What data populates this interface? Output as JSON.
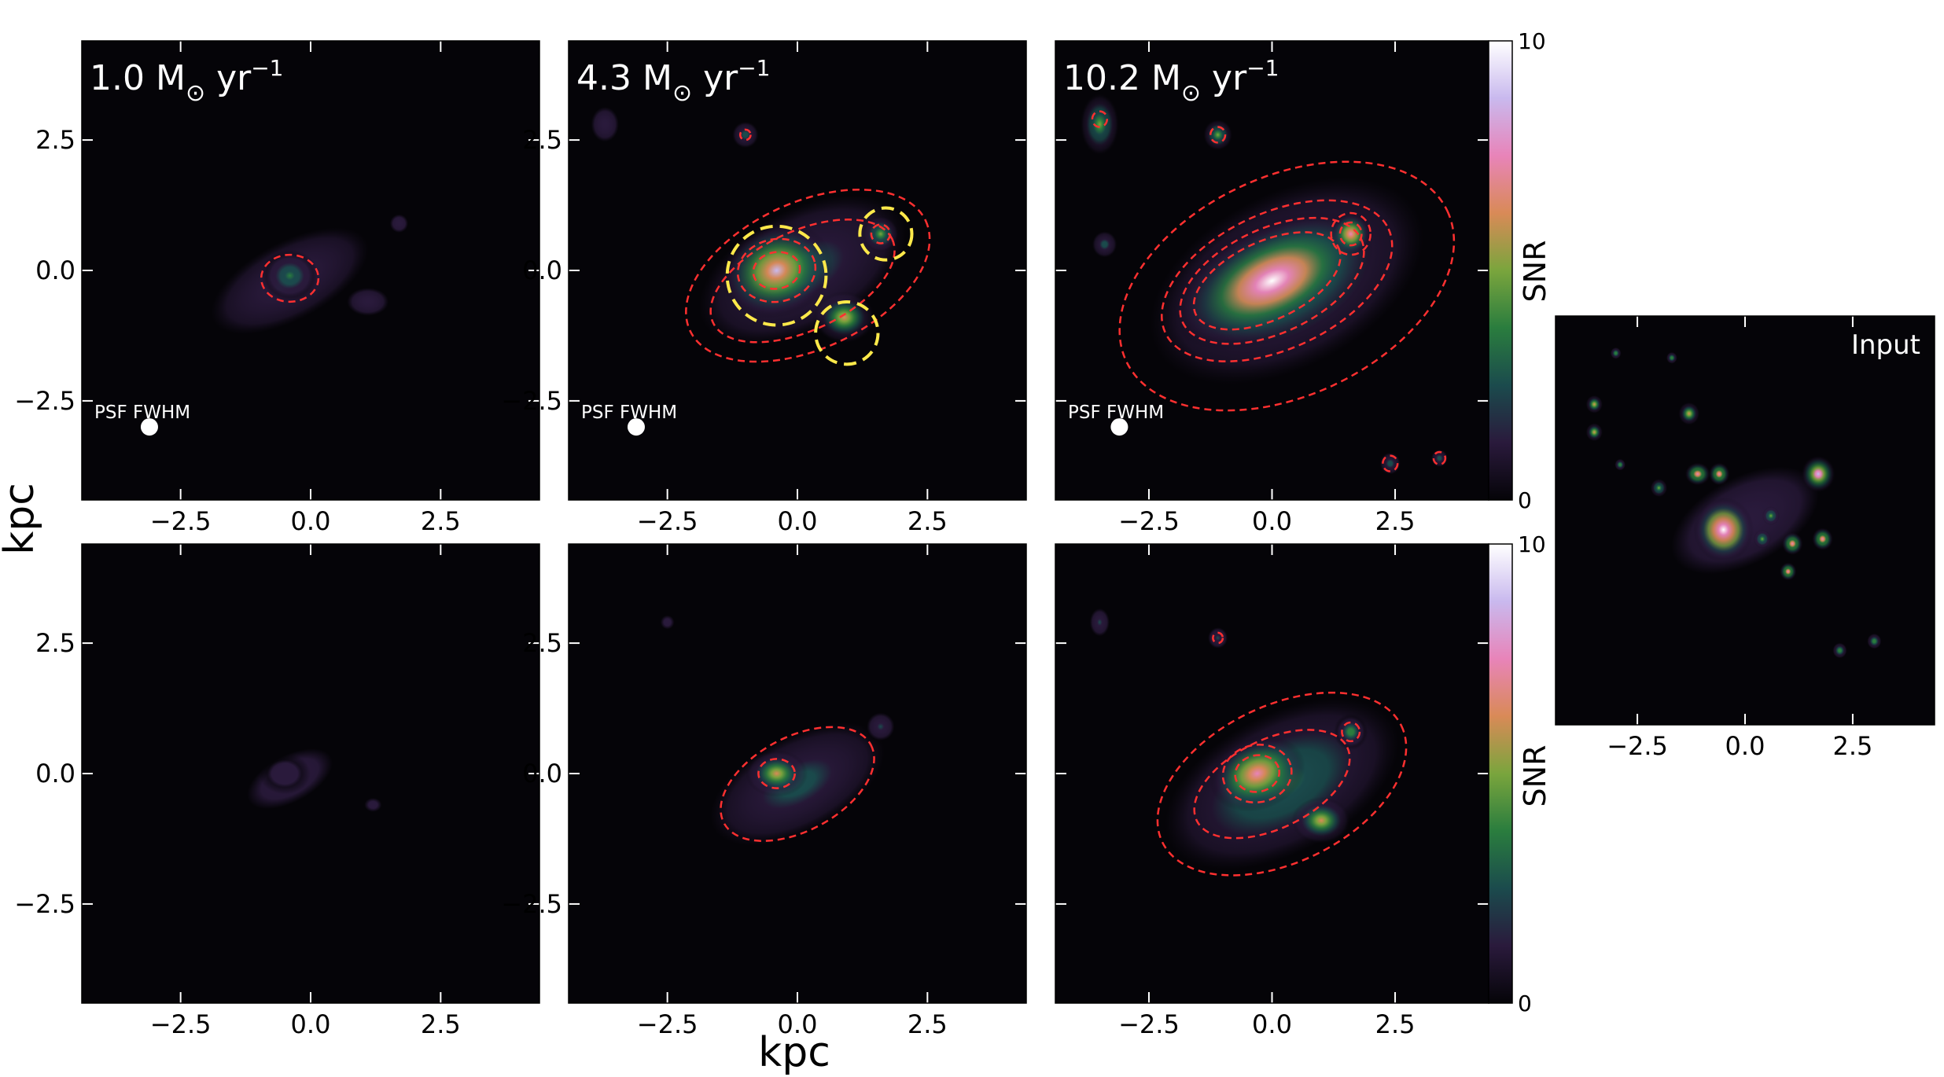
{
  "figure": {
    "xlabel": "kpc",
    "ylabel": "kpc",
    "colorbar_title": "SNR",
    "colorbar_range": [
      0,
      10
    ],
    "colorbar_tick_labels": [
      "10",
      "0"
    ],
    "psf_label": "PSF FWHM",
    "input_label": "Input",
    "tick_labels": [
      "−2.5",
      "0.0",
      "2.5"
    ],
    "row_titles": [
      "1.0",
      "4.3",
      "10.2"
    ],
    "unit_main": "M",
    "unit_sub": "⊙",
    "unit_yr": " yr",
    "unit_exp": "−1",
    "colors": {
      "background": "#050408",
      "contour": "#ff3030",
      "highlight": "#ffe94a",
      "cmap": [
        "#050408",
        "#2a1a3c",
        "#1b4b4d",
        "#2a7d3e",
        "#7aa53d",
        "#d98a57",
        "#e884b9",
        "#c9b9ee",
        "#ffffff"
      ]
    }
  },
  "chart_data": [
    {
      "type": "heatmap",
      "panel": "top-left",
      "sfr_label": "1.0 M⊙ yr⁻¹",
      "xlim": [
        -4.4,
        4.4
      ],
      "ylim": [
        -4.4,
        4.4
      ],
      "xticks": [
        -2.5,
        0.0,
        2.5
      ],
      "yticks": [
        -2.5,
        0.0,
        2.5
      ],
      "blobs": [
        {
          "x": -0.4,
          "y": -0.2,
          "sx": 2.0,
          "sy": 0.9,
          "rot": -28,
          "snr": 2.2
        },
        {
          "x": -0.4,
          "y": -0.1,
          "sx": 0.55,
          "sy": 0.5,
          "rot": 0,
          "snr": 3.6
        },
        {
          "x": 1.1,
          "y": -0.6,
          "sx": 0.6,
          "sy": 0.4,
          "rot": 0,
          "snr": 1.6
        },
        {
          "x": 1.7,
          "y": 0.9,
          "sx": 0.35,
          "sy": 0.35,
          "rot": 0,
          "snr": 1.2
        }
      ],
      "contours": [
        {
          "x": -0.4,
          "y": -0.15,
          "rx": 0.55,
          "ry": 0.45,
          "rot": 0
        }
      ],
      "highlight_circles": [],
      "psf": {
        "x": -3.1,
        "y": -3.0
      }
    },
    {
      "type": "heatmap",
      "panel": "top-middle",
      "sfr_label": "4.3 M⊙ yr⁻¹",
      "xlim": [
        -4.4,
        4.4
      ],
      "ylim": [
        -4.4,
        4.4
      ],
      "xticks": [
        -2.5,
        0.0,
        2.5
      ],
      "yticks": [
        -2.5,
        0.0,
        2.5
      ],
      "blobs": [
        {
          "x": 0.1,
          "y": 0.0,
          "sx": 2.6,
          "sy": 1.4,
          "rot": -28,
          "snr": 3.0
        },
        {
          "x": -0.4,
          "y": 0.0,
          "sx": 1.1,
          "sy": 0.9,
          "rot": -20,
          "snr": 8.5
        },
        {
          "x": 0.9,
          "y": -0.9,
          "sx": 0.6,
          "sy": 0.5,
          "rot": 0,
          "snr": 6.0
        },
        {
          "x": 1.6,
          "y": 0.7,
          "sx": 0.35,
          "sy": 0.35,
          "rot": 0,
          "snr": 5.0
        },
        {
          "x": -3.7,
          "y": 2.8,
          "sx": 0.4,
          "sy": 0.5,
          "rot": 0,
          "snr": 1.5
        },
        {
          "x": -1.0,
          "y": 2.6,
          "sx": 0.3,
          "sy": 0.3,
          "rot": 0,
          "snr": 2.5
        }
      ],
      "contours": [
        {
          "x": 0.2,
          "y": -0.1,
          "rx": 2.5,
          "ry": 1.4,
          "rot": -25
        },
        {
          "x": 0.1,
          "y": -0.2,
          "rx": 1.9,
          "ry": 0.95,
          "rot": -25
        },
        {
          "x": -0.4,
          "y": 0.0,
          "rx": 0.75,
          "ry": 0.6,
          "rot": -10
        },
        {
          "x": -0.4,
          "y": 0.0,
          "rx": 0.45,
          "ry": 0.35,
          "rot": -10
        },
        {
          "x": 1.6,
          "y": 0.7,
          "rx": 0.18,
          "ry": 0.18,
          "rot": 0
        },
        {
          "x": -1.0,
          "y": 2.6,
          "rx": 0.1,
          "ry": 0.1,
          "rot": 0
        }
      ],
      "highlight_circles": [
        {
          "x": -0.4,
          "y": -0.1,
          "r": 0.95
        },
        {
          "x": 0.95,
          "y": -1.2,
          "r": 0.6
        },
        {
          "x": 1.7,
          "y": 0.7,
          "r": 0.5
        }
      ],
      "psf": {
        "x": -3.1,
        "y": -3.0
      }
    },
    {
      "type": "heatmap",
      "panel": "top-right",
      "sfr_label": "10.2 M⊙ yr⁻¹",
      "xlim": [
        -4.4,
        4.4
      ],
      "ylim": [
        -4.4,
        4.4
      ],
      "xticks": [
        -2.5,
        0.0,
        2.5
      ],
      "yticks": [
        -2.5,
        0.0,
        2.5
      ],
      "blobs": [
        {
          "x": 0.3,
          "y": -0.2,
          "sx": 3.6,
          "sy": 2.0,
          "rot": -28,
          "snr": 3.6
        },
        {
          "x": 0.0,
          "y": -0.2,
          "sx": 2.2,
          "sy": 1.1,
          "rot": -25,
          "snr": 9.5
        },
        {
          "x": 1.6,
          "y": 0.7,
          "sx": 0.4,
          "sy": 0.4,
          "rot": 0,
          "snr": 8.0
        },
        {
          "x": -3.5,
          "y": 2.8,
          "sx": 0.4,
          "sy": 0.6,
          "rot": 0,
          "snr": 5.0
        },
        {
          "x": -1.1,
          "y": 2.6,
          "sx": 0.3,
          "sy": 0.3,
          "rot": 0,
          "snr": 5.0
        },
        {
          "x": -3.4,
          "y": 0.5,
          "sx": 0.3,
          "sy": 0.3,
          "rot": 0,
          "snr": 3.0
        },
        {
          "x": 2.4,
          "y": -3.7,
          "sx": 0.25,
          "sy": 0.25,
          "rot": 0,
          "snr": 3.0
        },
        {
          "x": 3.4,
          "y": -3.6,
          "sx": 0.2,
          "sy": 0.2,
          "rot": 0,
          "snr": 2.5
        }
      ],
      "contours": [
        {
          "x": 0.3,
          "y": -0.3,
          "rx": 3.6,
          "ry": 2.1,
          "rot": -25
        },
        {
          "x": 0.1,
          "y": -0.2,
          "rx": 2.5,
          "ry": 1.3,
          "rot": -25
        },
        {
          "x": 0.0,
          "y": -0.2,
          "rx": 2.0,
          "ry": 1.0,
          "rot": -25
        },
        {
          "x": -0.1,
          "y": -0.2,
          "rx": 1.6,
          "ry": 0.75,
          "rot": -25
        },
        {
          "x": 1.6,
          "y": 0.7,
          "rx": 0.4,
          "ry": 0.4,
          "rot": 0
        },
        {
          "x": 1.6,
          "y": 0.7,
          "rx": 0.22,
          "ry": 0.22,
          "rot": 0
        },
        {
          "x": -3.5,
          "y": 2.9,
          "rx": 0.15,
          "ry": 0.15,
          "rot": 0
        },
        {
          "x": -1.1,
          "y": 2.6,
          "rx": 0.15,
          "ry": 0.15,
          "rot": 0
        },
        {
          "x": 2.4,
          "y": -3.7,
          "rx": 0.15,
          "ry": 0.15,
          "rot": 0
        },
        {
          "x": 3.4,
          "y": -3.6,
          "rx": 0.12,
          "ry": 0.12,
          "rot": 0
        }
      ],
      "highlight_circles": [],
      "psf": {
        "x": -3.1,
        "y": -3.0
      }
    },
    {
      "type": "heatmap",
      "panel": "bottom-left",
      "xlim": [
        -4.4,
        4.4
      ],
      "ylim": [
        -4.4,
        4.4
      ],
      "xticks": [
        -2.5,
        0.0,
        2.5
      ],
      "yticks": [
        -2.5,
        0.0,
        2.5
      ],
      "blobs": [
        {
          "x": -0.4,
          "y": -0.1,
          "sx": 1.8,
          "sy": 0.9,
          "rot": -28,
          "snr": 1.2
        },
        {
          "x": 1.2,
          "y": -0.6,
          "sx": 0.5,
          "sy": 0.4,
          "rot": 0,
          "snr": 0.8
        },
        {
          "x": -0.5,
          "y": 0.0,
          "sx": 0.5,
          "sy": 0.4,
          "rot": 0,
          "snr": 1.4
        }
      ],
      "contours": [],
      "highlight_circles": []
    },
    {
      "type": "heatmap",
      "panel": "bottom-middle",
      "xlim": [
        -4.4,
        4.4
      ],
      "ylim": [
        -4.4,
        4.4
      ],
      "xticks": [
        -2.5,
        0.0,
        2.5
      ],
      "yticks": [
        -2.5,
        0.0,
        2.5
      ],
      "blobs": [
        {
          "x": 0.0,
          "y": -0.2,
          "sx": 2.2,
          "sy": 1.1,
          "rot": -28,
          "snr": 2.8
        },
        {
          "x": -0.4,
          "y": 0.0,
          "sx": 0.6,
          "sy": 0.45,
          "rot": 0,
          "snr": 6.0
        },
        {
          "x": 1.6,
          "y": 0.9,
          "sx": 0.4,
          "sy": 0.4,
          "rot": 0,
          "snr": 2.0
        },
        {
          "x": -2.5,
          "y": 2.9,
          "sx": 0.4,
          "sy": 0.4,
          "rot": 0,
          "snr": 0.8
        }
      ],
      "contours": [
        {
          "x": 0.0,
          "y": -0.2,
          "rx": 1.6,
          "ry": 0.9,
          "rot": -28
        },
        {
          "x": -0.4,
          "y": 0.0,
          "rx": 0.35,
          "ry": 0.28,
          "rot": 0
        }
      ],
      "highlight_circles": []
    },
    {
      "type": "heatmap",
      "panel": "bottom-right",
      "xlim": [
        -4.4,
        4.4
      ],
      "ylim": [
        -4.4,
        4.4
      ],
      "xticks": [
        -2.5,
        0.0,
        2.5
      ],
      "yticks": [
        -2.5,
        0.0,
        2.5
      ],
      "blobs": [
        {
          "x": 0.2,
          "y": -0.2,
          "sx": 3.1,
          "sy": 1.6,
          "rot": -28,
          "snr": 3.2
        },
        {
          "x": -0.3,
          "y": 0.0,
          "sx": 1.0,
          "sy": 0.7,
          "rot": -20,
          "snr": 8.0
        },
        {
          "x": 1.0,
          "y": -0.9,
          "sx": 0.6,
          "sy": 0.45,
          "rot": 0,
          "snr": 6.0
        },
        {
          "x": 1.6,
          "y": 0.8,
          "sx": 0.35,
          "sy": 0.35,
          "rot": 0,
          "snr": 4.0
        },
        {
          "x": -3.5,
          "y": 2.9,
          "sx": 0.3,
          "sy": 0.4,
          "rot": 0,
          "snr": 2.0
        },
        {
          "x": -1.1,
          "y": 2.6,
          "sx": 0.3,
          "sy": 0.3,
          "rot": 0,
          "snr": 2.0
        }
      ],
      "contours": [
        {
          "x": 0.2,
          "y": -0.2,
          "rx": 2.7,
          "ry": 1.5,
          "rot": -26
        },
        {
          "x": 0.0,
          "y": -0.2,
          "rx": 1.7,
          "ry": 0.85,
          "rot": -26
        },
        {
          "x": -0.3,
          "y": 0.0,
          "rx": 0.7,
          "ry": 0.55,
          "rot": -10
        },
        {
          "x": -0.3,
          "y": 0.0,
          "rx": 0.45,
          "ry": 0.35,
          "rot": -10
        },
        {
          "x": 1.6,
          "y": 0.8,
          "rx": 0.18,
          "ry": 0.18,
          "rot": 0
        },
        {
          "x": -1.1,
          "y": 2.6,
          "rx": 0.1,
          "ry": 0.1,
          "rot": 0
        }
      ],
      "highlight_circles": []
    },
    {
      "type": "heatmap",
      "panel": "input",
      "xlim": [
        -4.4,
        4.4
      ],
      "ylim": [
        -4.4,
        4.4
      ],
      "xticks": [
        -2.5,
        0.0,
        2.5
      ],
      "blobs": [
        {
          "x": 0.0,
          "y": 0.0,
          "sx": 2.8,
          "sy": 1.4,
          "rot": -28,
          "snr": 1.5
        },
        {
          "x": -0.5,
          "y": -0.2,
          "sx": 0.7,
          "sy": 0.7,
          "rot": 0,
          "snr": 10
        },
        {
          "x": 1.7,
          "y": 1.0,
          "sx": 0.4,
          "sy": 0.4,
          "rot": 0,
          "snr": 9
        },
        {
          "x": -1.1,
          "y": 1.0,
          "sx": 0.3,
          "sy": 0.25,
          "rot": 0,
          "snr": 7
        },
        {
          "x": -0.6,
          "y": 1.0,
          "sx": 0.25,
          "sy": 0.25,
          "rot": 0,
          "snr": 7
        },
        {
          "x": 1.1,
          "y": -0.5,
          "sx": 0.25,
          "sy": 0.25,
          "rot": 0,
          "snr": 7
        },
        {
          "x": 1.8,
          "y": -0.4,
          "sx": 0.25,
          "sy": 0.25,
          "rot": 0,
          "snr": 7
        },
        {
          "x": 1.0,
          "y": -1.1,
          "sx": 0.2,
          "sy": 0.2,
          "rot": 0,
          "snr": 7
        },
        {
          "x": -1.3,
          "y": 2.3,
          "sx": 0.25,
          "sy": 0.25,
          "rot": 0,
          "snr": 6
        },
        {
          "x": -3.5,
          "y": 2.5,
          "sx": 0.2,
          "sy": 0.2,
          "rot": 0,
          "snr": 6
        },
        {
          "x": -3.5,
          "y": 1.9,
          "sx": 0.2,
          "sy": 0.2,
          "rot": 0,
          "snr": 6
        },
        {
          "x": -2.0,
          "y": 0.7,
          "sx": 0.2,
          "sy": 0.2,
          "rot": 0,
          "snr": 5
        },
        {
          "x": 0.6,
          "y": 0.1,
          "sx": 0.2,
          "sy": 0.2,
          "rot": 0,
          "snr": 5
        },
        {
          "x": 0.4,
          "y": -0.4,
          "sx": 0.2,
          "sy": 0.2,
          "rot": 0,
          "snr": 5
        },
        {
          "x": 2.2,
          "y": -2.8,
          "sx": 0.2,
          "sy": 0.2,
          "rot": 0,
          "snr": 4
        },
        {
          "x": 3.0,
          "y": -2.6,
          "sx": 0.2,
          "sy": 0.2,
          "rot": 0,
          "snr": 4
        },
        {
          "x": -2.9,
          "y": 1.2,
          "sx": 0.15,
          "sy": 0.15,
          "rot": 0,
          "snr": 4
        },
        {
          "x": -3.0,
          "y": 3.6,
          "sx": 0.15,
          "sy": 0.15,
          "rot": 0,
          "snr": 4
        },
        {
          "x": -1.7,
          "y": 3.5,
          "sx": 0.15,
          "sy": 0.15,
          "rot": 0,
          "snr": 4
        }
      ],
      "contours": [],
      "highlight_circles": []
    }
  ]
}
